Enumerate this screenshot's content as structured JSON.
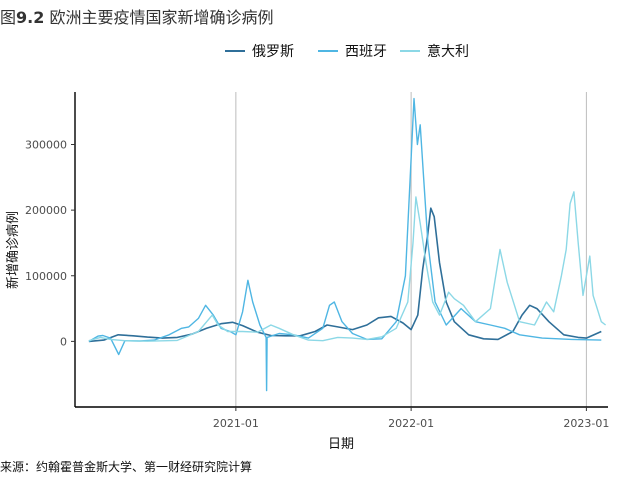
{
  "page": {
    "title_prefix": "图",
    "title_number": "9.2",
    "title_text": " 欧洲主要疫情国家新增确诊病例",
    "source": "来源：约翰霍普金斯大学、第一财经研究院计算"
  },
  "colors": {
    "russia": "#2f6f99",
    "spain": "#4fb6e3",
    "italy": "#8cd8e6",
    "grid": "#bdbdbd",
    "axis": "#000000"
  },
  "chart_data": {
    "type": "line",
    "xlabel": "日期",
    "ylabel": "新增确诊病例",
    "x_range": [
      "2020-02-01",
      "2023-02-15"
    ],
    "ylim": [
      -100000,
      380000
    ],
    "y_ticks": [
      0,
      100000,
      200000,
      300000
    ],
    "y_tick_labels": [
      "0",
      "100000",
      "200000",
      "300000"
    ],
    "x_ticks": [
      "2021-01-01",
      "2022-01-01",
      "2023-01-01"
    ],
    "x_tick_labels": [
      "2021-01",
      "2022-01",
      "2023-01"
    ],
    "grid": "vertical major gridlines",
    "legend_position": "top",
    "series": [
      {
        "name": "俄罗斯",
        "color_key": "russia",
        "points": [
          [
            "2020-03-01",
            0
          ],
          [
            "2020-04-01",
            2000
          ],
          [
            "2020-05-01",
            10000
          ],
          [
            "2020-06-01",
            8500
          ],
          [
            "2020-07-01",
            6500
          ],
          [
            "2020-08-01",
            5000
          ],
          [
            "2020-09-01",
            6000
          ],
          [
            "2020-10-01",
            11000
          ],
          [
            "2020-11-01",
            20000
          ],
          [
            "2020-12-01",
            27000
          ],
          [
            "2020-12-25",
            29000
          ],
          [
            "2021-01-15",
            24000
          ],
          [
            "2021-02-15",
            14000
          ],
          [
            "2021-03-15",
            9000
          ],
          [
            "2021-04-15",
            8500
          ],
          [
            "2021-05-15",
            8500
          ],
          [
            "2021-06-15",
            15000
          ],
          [
            "2021-07-10",
            25000
          ],
          [
            "2021-08-01",
            22000
          ],
          [
            "2021-09-01",
            18000
          ],
          [
            "2021-10-01",
            25000
          ],
          [
            "2021-10-25",
            36000
          ],
          [
            "2021-11-20",
            38000
          ],
          [
            "2021-12-15",
            28000
          ],
          [
            "2022-01-01",
            18000
          ],
          [
            "2022-01-15",
            40000
          ],
          [
            "2022-01-25",
            110000
          ],
          [
            "2022-02-04",
            160000
          ],
          [
            "2022-02-11",
            203000
          ],
          [
            "2022-02-18",
            190000
          ],
          [
            "2022-03-01",
            120000
          ],
          [
            "2022-03-15",
            60000
          ],
          [
            "2022-04-01",
            30000
          ],
          [
            "2022-05-01",
            10000
          ],
          [
            "2022-06-01",
            4000
          ],
          [
            "2022-07-01",
            3000
          ],
          [
            "2022-08-01",
            15000
          ],
          [
            "2022-08-20",
            40000
          ],
          [
            "2022-09-05",
            55000
          ],
          [
            "2022-09-20",
            50000
          ],
          [
            "2022-10-15",
            30000
          ],
          [
            "2022-11-15",
            10000
          ],
          [
            "2022-12-15",
            6000
          ],
          [
            "2023-01-01",
            5000
          ],
          [
            "2023-02-01",
            15000
          ]
        ]
      },
      {
        "name": "西班牙",
        "color_key": "spain",
        "points": [
          [
            "2020-03-01",
            0
          ],
          [
            "2020-03-20",
            8000
          ],
          [
            "2020-03-30",
            9000
          ],
          [
            "2020-04-15",
            5000
          ],
          [
            "2020-05-02",
            -20000
          ],
          [
            "2020-05-15",
            1000
          ],
          [
            "2020-06-15",
            500
          ],
          [
            "2020-07-15",
            2000
          ],
          [
            "2020-08-15",
            10000
          ],
          [
            "2020-09-10",
            20000
          ],
          [
            "2020-09-25",
            22000
          ],
          [
            "2020-10-15",
            35000
          ],
          [
            "2020-10-30",
            55000
          ],
          [
            "2020-11-15",
            40000
          ],
          [
            "2020-12-01",
            20000
          ],
          [
            "2020-12-20",
            15000
          ],
          [
            "2021-01-01",
            10000
          ],
          [
            "2021-01-15",
            45000
          ],
          [
            "2021-01-26",
            93000
          ],
          [
            "2021-02-05",
            60000
          ],
          [
            "2021-02-20",
            25000
          ],
          [
            "2021-03-05",
            6000
          ],
          [
            "2021-03-06",
            -75000
          ],
          [
            "2021-03-07",
            6000
          ],
          [
            "2021-04-01",
            12000
          ],
          [
            "2021-05-01",
            10000
          ],
          [
            "2021-06-01",
            5000
          ],
          [
            "2021-07-01",
            20000
          ],
          [
            "2021-07-15",
            55000
          ],
          [
            "2021-07-25",
            60000
          ],
          [
            "2021-08-10",
            30000
          ],
          [
            "2021-09-01",
            12000
          ],
          [
            "2021-10-01",
            3000
          ],
          [
            "2021-11-01",
            4000
          ],
          [
            "2021-12-01",
            30000
          ],
          [
            "2021-12-20",
            100000
          ],
          [
            "2021-12-30",
            250000
          ],
          [
            "2022-01-07",
            370000
          ],
          [
            "2022-01-14",
            300000
          ],
          [
            "2022-01-20",
            330000
          ],
          [
            "2022-01-27",
            250000
          ],
          [
            "2022-02-05",
            150000
          ],
          [
            "2022-02-20",
            60000
          ],
          [
            "2022-03-15",
            25000
          ],
          [
            "2022-04-15",
            50000
          ],
          [
            "2022-05-15",
            30000
          ],
          [
            "2022-06-15",
            25000
          ],
          [
            "2022-07-15",
            20000
          ],
          [
            "2022-08-15",
            10000
          ],
          [
            "2022-10-01",
            5000
          ],
          [
            "2022-12-01",
            3000
          ],
          [
            "2023-02-01",
            2000
          ]
        ]
      },
      {
        "name": "意大利",
        "color_key": "italy",
        "points": [
          [
            "2020-03-01",
            1000
          ],
          [
            "2020-03-25",
            6000
          ],
          [
            "2020-04-15",
            3000
          ],
          [
            "2020-05-15",
            1000
          ],
          [
            "2020-07-01",
            300
          ],
          [
            "2020-09-01",
            1500
          ],
          [
            "2020-10-15",
            15000
          ],
          [
            "2020-11-13",
            40000
          ],
          [
            "2020-11-25",
            25000
          ],
          [
            "2020-12-15",
            15000
          ],
          [
            "2021-01-15",
            15000
          ],
          [
            "2021-02-15",
            14000
          ],
          [
            "2021-03-15",
            25000
          ],
          [
            "2021-04-01",
            20000
          ],
          [
            "2021-05-01",
            10000
          ],
          [
            "2021-06-01",
            2000
          ],
          [
            "2021-07-01",
            1000
          ],
          [
            "2021-08-01",
            6000
          ],
          [
            "2021-09-01",
            5000
          ],
          [
            "2021-10-01",
            3000
          ],
          [
            "2021-11-01",
            7000
          ],
          [
            "2021-12-01",
            20000
          ],
          [
            "2021-12-25",
            60000
          ],
          [
            "2022-01-05",
            150000
          ],
          [
            "2022-01-11",
            220000
          ],
          [
            "2022-01-20",
            180000
          ],
          [
            "2022-02-01",
            120000
          ],
          [
            "2022-02-15",
            60000
          ],
          [
            "2022-03-01",
            40000
          ],
          [
            "2022-03-20",
            75000
          ],
          [
            "2022-04-01",
            65000
          ],
          [
            "2022-04-20",
            55000
          ],
          [
            "2022-05-15",
            30000
          ],
          [
            "2022-06-15",
            50000
          ],
          [
            "2022-07-05",
            140000
          ],
          [
            "2022-07-20",
            90000
          ],
          [
            "2022-08-15",
            30000
          ],
          [
            "2022-09-15",
            25000
          ],
          [
            "2022-10-10",
            60000
          ],
          [
            "2022-10-25",
            45000
          ],
          [
            "2022-11-10",
            100000
          ],
          [
            "2022-11-20",
            140000
          ],
          [
            "2022-11-28",
            210000
          ],
          [
            "2022-12-06",
            228000
          ],
          [
            "2022-12-15",
            150000
          ],
          [
            "2022-12-25",
            70000
          ],
          [
            "2023-01-08",
            130000
          ],
          [
            "2023-01-15",
            70000
          ],
          [
            "2023-02-01",
            30000
          ],
          [
            "2023-02-10",
            25000
          ]
        ]
      }
    ]
  }
}
